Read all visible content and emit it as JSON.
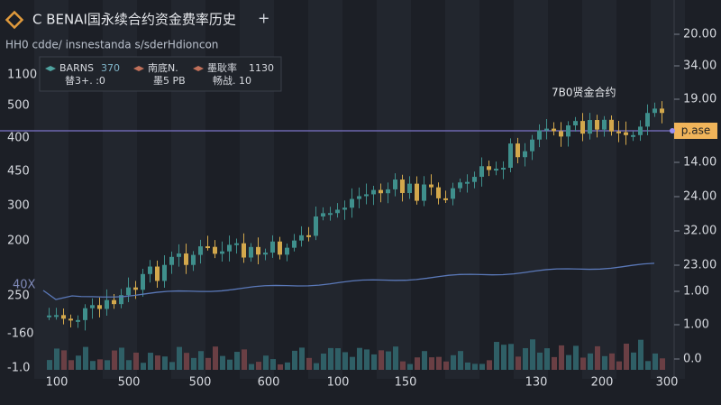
{
  "header": {
    "title": "C BENAI国永续合约资金费率历史",
    "add_button": "+",
    "subtitle": "HH0 cdde/ insnestanda s/sderHdioncon"
  },
  "legend": [
    {
      "name": "BARNS",
      "value": "370",
      "sub": "替3+. :0"
    },
    {
      "name": "南底N.",
      "value": "",
      "sub": "墨5 PB"
    },
    {
      "name": "墨耿率",
      "value": "1130",
      "sub": "畅战. 10"
    }
  ],
  "left_axis": [
    "1100",
    "500",
    "400",
    "450",
    "300",
    "200",
    "40X",
    "250",
    "-160",
    "-1.0"
  ],
  "right_axis": [
    "20.00",
    "34.00",
    "19.00",
    "14.00",
    "24.00",
    "32.00",
    "23.00",
    "1.00",
    "1.00",
    "0.0"
  ],
  "bottom_axis": [
    "100",
    "500",
    "500",
    "600",
    "100",
    "150",
    "130",
    "200",
    "300"
  ],
  "annotation": "7B0贤金合约",
  "price_tag": "p.ase"
}
